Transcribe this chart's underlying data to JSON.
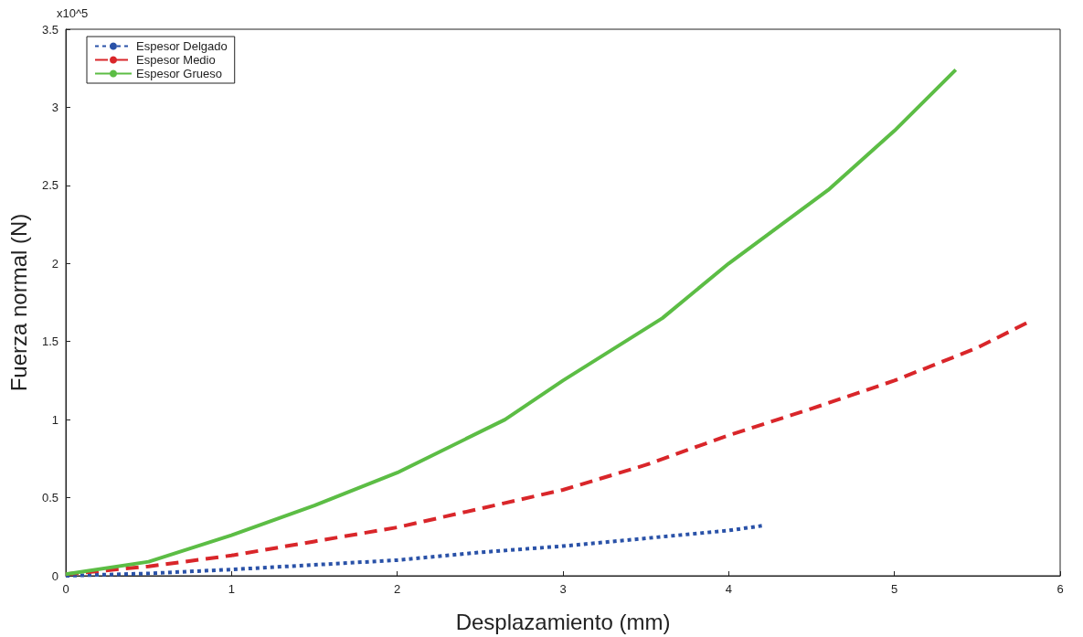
{
  "chart_data": {
    "type": "line",
    "xlabel": "Desplazamiento (mm)",
    "ylabel": "Fuerza normal (N)",
    "annotations": [
      "x10^5"
    ],
    "xlim": [
      0,
      6
    ],
    "xticks": [
      0,
      1,
      2,
      3,
      4,
      5,
      6
    ],
    "ylim": [
      0,
      3.5
    ],
    "yticks": [
      0,
      0.5,
      1,
      1.5,
      2,
      2.5,
      3,
      3.5
    ],
    "grid": false,
    "legend": "top left",
    "marker": "none",
    "series": [
      {
        "name": "Espesor Delgado",
        "color": "#2a52a8",
        "line_style": "dotted",
        "x": [
          0,
          0.5,
          1,
          1.5,
          2,
          2.5,
          3,
          3.5,
          4,
          4.2
        ],
        "values": [
          0,
          0.015,
          0.04,
          0.07,
          0.1,
          0.15,
          0.19,
          0.24,
          0.29,
          0.32
        ]
      },
      {
        "name": "Espesor Medio",
        "color": "#d9262a",
        "line_style": "dashed",
        "x": [
          0,
          0.5,
          1,
          1.5,
          2,
          2.5,
          3,
          3.5,
          4,
          4.5,
          5,
          5.5,
          5.8
        ],
        "values": [
          0.01,
          0.06,
          0.13,
          0.22,
          0.31,
          0.43,
          0.55,
          0.71,
          0.9,
          1.07,
          1.25,
          1.46,
          1.62
        ]
      },
      {
        "name": "Espesor Grueso",
        "color": "#5cbd45",
        "line_style": "solid",
        "x": [
          0,
          0.5,
          1,
          1.5,
          2,
          2.65,
          3,
          3.6,
          4,
          4.6,
          5,
          5.37
        ],
        "values": [
          0.01,
          0.09,
          0.26,
          0.45,
          0.66,
          1.0,
          1.25,
          1.65,
          2.0,
          2.47,
          2.85,
          3.24
        ]
      }
    ]
  }
}
